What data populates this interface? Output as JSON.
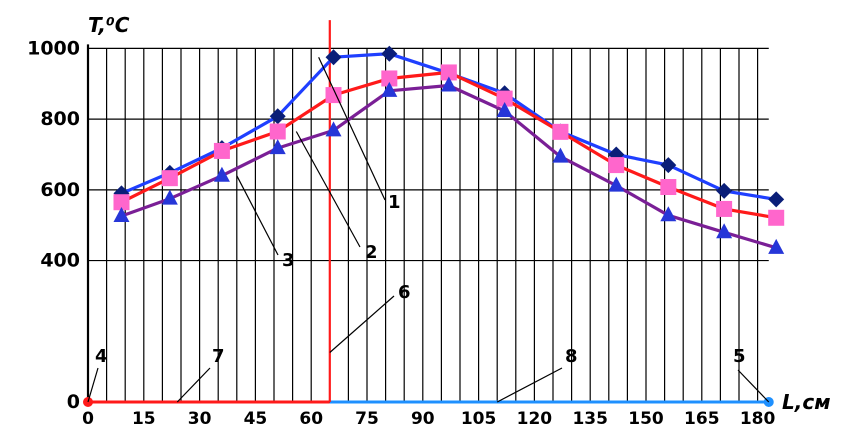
{
  "chart_data": {
    "type": "line",
    "ylabel": "T,⁰C",
    "xlabel": "L,см",
    "xlim": [
      0,
      183
    ],
    "ylim": [
      0,
      1000
    ],
    "x_ticks": [
      0,
      15,
      30,
      45,
      60,
      75,
      90,
      105,
      120,
      135,
      150,
      165,
      180
    ],
    "y_ticks": [
      0,
      400,
      600,
      800,
      1000
    ],
    "grid": true,
    "series": [
      {
        "name": "1",
        "color": "#1f3fff",
        "marker": "diamond",
        "marker_color": "#0a1e78",
        "x": [
          9,
          22,
          36,
          51,
          66,
          81,
          97,
          112,
          127,
          142,
          156,
          171,
          185
        ],
        "y": [
          590,
          648,
          718,
          808,
          975,
          985,
          930,
          873,
          765,
          700,
          670,
          597,
          573
        ]
      },
      {
        "name": "2",
        "color": "#ff1a1a",
        "marker": "square",
        "marker_color": "#ff66cc",
        "x": [
          9,
          22,
          36,
          51,
          66,
          81,
          97,
          112,
          127,
          142,
          156,
          171,
          185
        ],
        "y": [
          565,
          633,
          710,
          765,
          868,
          915,
          932,
          858,
          764,
          670,
          608,
          546,
          521
        ]
      },
      {
        "name": "3",
        "color": "#7a1f96",
        "marker": "triangle",
        "marker_color": "#2636d8",
        "x": [
          9,
          22,
          36,
          51,
          66,
          81,
          97,
          112,
          127,
          142,
          156,
          171,
          185
        ],
        "y": [
          526,
          575,
          640,
          718,
          768,
          880,
          895,
          823,
          694,
          612,
          528,
          480,
          436
        ]
      }
    ],
    "vertical_lines": [
      {
        "name": "6",
        "x": 65,
        "y_from": 0,
        "y_to": 1080,
        "color": "#ff1a1a"
      }
    ],
    "baseline_segments": [
      {
        "name": "7",
        "x_from": 0,
        "x_to": 65,
        "y": 0,
        "color": "#ff1a1a"
      },
      {
        "name": "8",
        "x_from": 65,
        "x_to": 183,
        "y": 0,
        "color": "#1e90ff"
      }
    ],
    "endpoints": [
      {
        "name": "4",
        "x": 0,
        "y": 0,
        "color": "#ff1a1a"
      },
      {
        "name": "5",
        "x": 183,
        "y": 0,
        "color": "#1e90ff"
      }
    ],
    "annotations": [
      {
        "label": "1",
        "target_series": "1",
        "x": 62,
        "y": 745
      },
      {
        "label": "2",
        "target_series": "2",
        "x": 56,
        "y": 590
      },
      {
        "label": "3",
        "target_series": "3",
        "x": 40,
        "y": 400
      },
      {
        "label": "4",
        "x": 0,
        "y": 0
      },
      {
        "label": "5",
        "x": 183,
        "y": 0
      },
      {
        "label": "6",
        "x": 65,
        "y": 140
      },
      {
        "label": "7",
        "x": 24,
        "y": 0
      },
      {
        "label": "8",
        "x": 110,
        "y": 0
      }
    ]
  }
}
